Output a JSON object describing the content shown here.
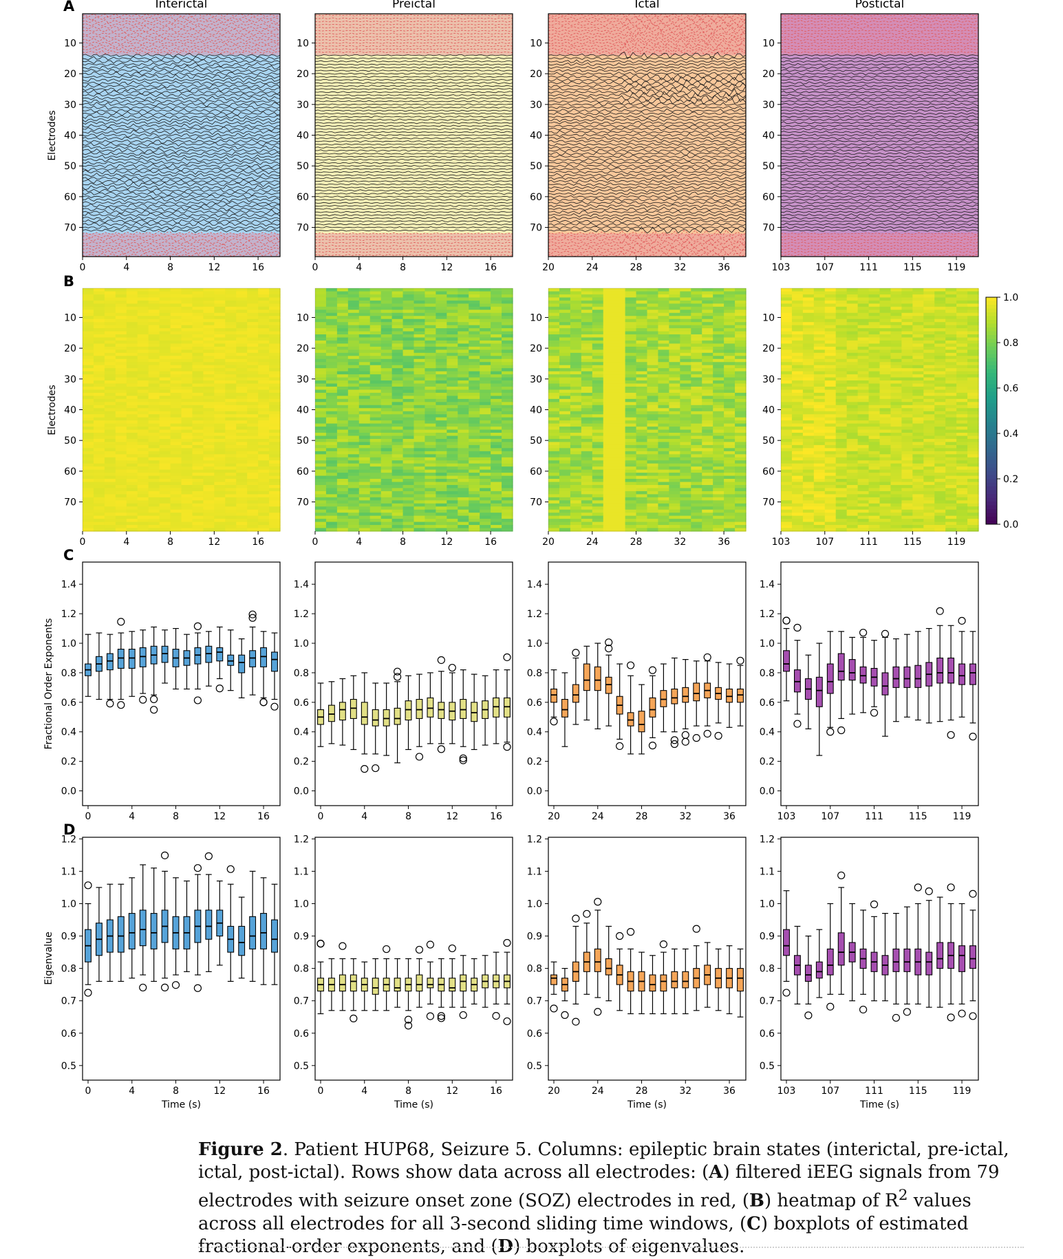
{
  "figure": {
    "panel_letters": [
      "A",
      "B",
      "C",
      "D"
    ],
    "columns": [
      {
        "title": "Interictal",
        "xticks": [
          "0",
          "4",
          "8",
          "12",
          "16"
        ],
        "color": "#56a3d9",
        "bg": "#a8d4f1"
      },
      {
        "title": "Preictal",
        "xticks": [
          "0",
          "4",
          "8",
          "12",
          "16"
        ],
        "color": "#e2e086",
        "bg": "#f3eeb6"
      },
      {
        "title": "Ictal",
        "xticks": [
          "20",
          "24",
          "28",
          "32",
          "36"
        ],
        "color": "#f5a558",
        "bg": "#f8c79a"
      },
      {
        "title": "Postictal",
        "xticks": [
          "103",
          "107",
          "111",
          "115",
          "119"
        ],
        "color": "#a64fb0",
        "bg": "#c691c8"
      }
    ],
    "soz_color": "#e05a5a"
  },
  "chart_data": [
    {
      "type": "line",
      "panel": "A",
      "description_rows": "filtered iEEG signals from 79 electrodes",
      "ylabel": "Electrodes",
      "xlabel": "",
      "yticks": [
        "10",
        "20",
        "30",
        "40",
        "50",
        "60",
        "70"
      ],
      "n_electrodes": 79,
      "soz_electrodes": [
        1,
        2,
        3,
        4,
        5,
        6,
        7,
        8,
        9,
        10,
        11,
        12,
        13,
        72,
        73,
        74,
        75,
        76,
        77,
        78,
        79
      ],
      "x_ranges": [
        [
          0,
          18
        ],
        [
          0,
          18
        ],
        [
          20,
          38
        ],
        [
          103,
          121
        ]
      ]
    },
    {
      "type": "heatmap",
      "panel": "B",
      "ylabel": "Electrodes",
      "xlabel": "",
      "yticks": [
        "10",
        "20",
        "30",
        "40",
        "50",
        "60",
        "70"
      ],
      "colorbar": {
        "ticks": [
          "0.0",
          "0.2",
          "0.4",
          "0.6",
          "0.8",
          "1.0"
        ],
        "range": [
          0,
          1
        ],
        "colormap": "viridis"
      },
      "mean_r2": [
        0.97,
        0.82,
        0.86,
        0.92
      ]
    },
    {
      "type": "box",
      "panel": "C",
      "ylabel": "Fractional Order Exponents",
      "xlabel": "",
      "yticks": [
        "0.0",
        "0.2",
        "0.4",
        "0.6",
        "0.8",
        "1.0",
        "1.2",
        "1.4"
      ],
      "ylim": [
        -0.1,
        1.55
      ],
      "series": [
        {
          "name": "Interictal",
          "x0": 0,
          "medians": [
            0.82,
            0.86,
            0.88,
            0.9,
            0.9,
            0.91,
            0.92,
            0.93,
            0.9,
            0.9,
            0.92,
            0.93,
            0.94,
            0.88,
            0.87,
            0.9,
            0.91,
            0.89
          ],
          "q1": [
            0.78,
            0.81,
            0.82,
            0.83,
            0.83,
            0.84,
            0.86,
            0.87,
            0.84,
            0.85,
            0.86,
            0.87,
            0.88,
            0.85,
            0.8,
            0.84,
            0.84,
            0.81
          ],
          "q3": [
            0.86,
            0.91,
            0.93,
            0.96,
            0.96,
            0.97,
            0.98,
            0.98,
            0.96,
            0.95,
            0.97,
            0.98,
            0.97,
            0.92,
            0.92,
            0.95,
            0.97,
            0.94
          ],
          "wlo": [
            0.64,
            0.62,
            0.62,
            0.62,
            0.64,
            0.66,
            0.65,
            0.73,
            0.69,
            0.69,
            0.69,
            0.71,
            0.76,
            0.68,
            0.63,
            0.65,
            0.63,
            0.62
          ],
          "whi": [
            1.06,
            1.07,
            1.06,
            1.07,
            1.08,
            1.09,
            1.11,
            1.09,
            1.1,
            1.06,
            1.07,
            1.08,
            1.11,
            1.09,
            1.03,
            1.11,
            1.08,
            1.07
          ]
        },
        {
          "name": "Preictal",
          "x0": 0,
          "medians": [
            0.5,
            0.52,
            0.55,
            0.56,
            0.5,
            0.48,
            0.49,
            0.49,
            0.55,
            0.55,
            0.56,
            0.55,
            0.54,
            0.55,
            0.53,
            0.55,
            0.57,
            0.57
          ],
          "q1": [
            0.45,
            0.47,
            0.48,
            0.49,
            0.45,
            0.44,
            0.44,
            0.45,
            0.48,
            0.49,
            0.5,
            0.49,
            0.48,
            0.49,
            0.47,
            0.49,
            0.5,
            0.5
          ],
          "q3": [
            0.55,
            0.58,
            0.6,
            0.62,
            0.6,
            0.55,
            0.55,
            0.56,
            0.61,
            0.62,
            0.63,
            0.6,
            0.6,
            0.62,
            0.6,
            0.61,
            0.63,
            0.63
          ],
          "wlo": [
            0.3,
            0.32,
            0.31,
            0.28,
            0.25,
            0.25,
            0.24,
            0.19,
            0.28,
            0.3,
            0.32,
            0.32,
            0.32,
            0.3,
            0.28,
            0.31,
            0.32,
            0.33
          ],
          "whi": [
            0.73,
            0.74,
            0.76,
            0.78,
            0.8,
            0.73,
            0.73,
            0.74,
            0.78,
            0.79,
            0.8,
            0.81,
            0.8,
            0.82,
            0.79,
            0.78,
            0.82,
            0.82
          ]
        },
        {
          "name": "Ictal",
          "x0": 20,
          "medians": [
            0.65,
            0.55,
            0.65,
            0.75,
            0.75,
            0.72,
            0.58,
            0.48,
            0.45,
            0.55,
            0.62,
            0.63,
            0.64,
            0.66,
            0.68,
            0.66,
            0.64,
            0.65
          ],
          "q1": [
            0.6,
            0.5,
            0.6,
            0.68,
            0.68,
            0.66,
            0.52,
            0.44,
            0.4,
            0.5,
            0.57,
            0.59,
            0.6,
            0.61,
            0.63,
            0.62,
            0.6,
            0.6
          ],
          "q3": [
            0.69,
            0.62,
            0.72,
            0.86,
            0.84,
            0.77,
            0.64,
            0.53,
            0.54,
            0.63,
            0.68,
            0.69,
            0.7,
            0.73,
            0.73,
            0.7,
            0.69,
            0.69
          ],
          "wlo": [
            0.5,
            0.3,
            0.45,
            0.48,
            0.42,
            0.44,
            0.35,
            0.25,
            0.25,
            0.36,
            0.4,
            0.4,
            0.42,
            0.44,
            0.44,
            0.46,
            0.43,
            0.44
          ],
          "whi": [
            0.82,
            0.8,
            0.9,
            0.98,
            1.0,
            0.92,
            0.86,
            0.78,
            0.72,
            0.78,
            0.86,
            0.9,
            0.89,
            0.88,
            0.88,
            0.87,
            0.86,
            0.85
          ]
        },
        {
          "name": "Postictal",
          "x0": 103,
          "medians": [
            0.86,
            0.74,
            0.69,
            0.68,
            0.74,
            0.81,
            0.8,
            0.78,
            0.77,
            0.71,
            0.76,
            0.76,
            0.76,
            0.79,
            0.8,
            0.8,
            0.78,
            0.8
          ],
          "q1": [
            0.81,
            0.67,
            0.62,
            0.57,
            0.66,
            0.75,
            0.75,
            0.73,
            0.71,
            0.65,
            0.7,
            0.7,
            0.7,
            0.71,
            0.73,
            0.73,
            0.72,
            0.72
          ],
          "q3": [
            0.95,
            0.82,
            0.76,
            0.77,
            0.86,
            0.93,
            0.89,
            0.84,
            0.83,
            0.8,
            0.84,
            0.84,
            0.85,
            0.87,
            0.9,
            0.9,
            0.86,
            0.86
          ],
          "wlo": [
            0.61,
            0.52,
            0.42,
            0.24,
            0.43,
            0.49,
            0.52,
            0.53,
            0.57,
            0.37,
            0.47,
            0.5,
            0.48,
            0.46,
            0.47,
            0.48,
            0.5,
            0.46
          ],
          "whi": [
            1.1,
            1.02,
            0.92,
            1.0,
            1.08,
            1.08,
            1.04,
            1.04,
            1.02,
            1.04,
            1.03,
            1.06,
            1.08,
            1.1,
            1.12,
            1.12,
            1.08,
            1.08
          ]
        }
      ]
    },
    {
      "type": "box",
      "panel": "D",
      "ylabel": "Eigenvalue",
      "xlabel": "Time (s)",
      "yticks": [
        "0.5",
        "0.6",
        "0.7",
        "0.8",
        "0.9",
        "1.0",
        "1.1",
        "1.2"
      ],
      "ylim": [
        0.455,
        1.205
      ],
      "series": [
        {
          "name": "Interictal",
          "x0": 0,
          "medians": [
            0.87,
            0.89,
            0.9,
            0.9,
            0.91,
            0.92,
            0.91,
            0.93,
            0.91,
            0.91,
            0.93,
            0.93,
            0.94,
            0.89,
            0.88,
            0.9,
            0.91,
            0.89
          ],
          "q1": [
            0.82,
            0.84,
            0.85,
            0.85,
            0.86,
            0.87,
            0.86,
            0.88,
            0.86,
            0.86,
            0.88,
            0.89,
            0.9,
            0.85,
            0.84,
            0.86,
            0.86,
            0.85
          ],
          "q3": [
            0.92,
            0.94,
            0.95,
            0.96,
            0.97,
            0.98,
            0.97,
            0.98,
            0.96,
            0.96,
            0.98,
            0.98,
            0.98,
            0.93,
            0.93,
            0.96,
            0.97,
            0.95
          ],
          "wlo": [
            0.75,
            0.76,
            0.76,
            0.76,
            0.77,
            0.78,
            0.76,
            0.77,
            0.78,
            0.79,
            0.78,
            0.79,
            0.81,
            0.76,
            0.77,
            0.76,
            0.75,
            0.75
          ],
          "whi": [
            1.0,
            1.05,
            1.06,
            1.06,
            1.08,
            1.12,
            1.11,
            1.1,
            1.08,
            1.07,
            1.09,
            1.09,
            1.07,
            1.06,
            1.02,
            1.1,
            1.08,
            1.06
          ]
        },
        {
          "name": "Preictal",
          "x0": 0,
          "medians": [
            0.75,
            0.75,
            0.75,
            0.76,
            0.75,
            0.74,
            0.75,
            0.74,
            0.75,
            0.75,
            0.75,
            0.75,
            0.74,
            0.76,
            0.75,
            0.76,
            0.76,
            0.76
          ],
          "q1": [
            0.73,
            0.73,
            0.73,
            0.73,
            0.73,
            0.72,
            0.73,
            0.73,
            0.73,
            0.73,
            0.74,
            0.73,
            0.73,
            0.73,
            0.73,
            0.74,
            0.74,
            0.74
          ],
          "q3": [
            0.77,
            0.77,
            0.78,
            0.78,
            0.77,
            0.77,
            0.77,
            0.77,
            0.77,
            0.78,
            0.77,
            0.77,
            0.77,
            0.78,
            0.77,
            0.78,
            0.78,
            0.78
          ],
          "wlo": [
            0.66,
            0.67,
            0.67,
            0.67,
            0.67,
            0.67,
            0.67,
            0.68,
            0.67,
            0.68,
            0.69,
            0.68,
            0.68,
            0.68,
            0.69,
            0.68,
            0.69,
            0.69
          ],
          "whi": [
            0.82,
            0.83,
            0.83,
            0.83,
            0.82,
            0.83,
            0.83,
            0.83,
            0.83,
            0.83,
            0.82,
            0.83,
            0.83,
            0.84,
            0.83,
            0.84,
            0.85,
            0.85
          ]
        },
        {
          "name": "Ictal",
          "x0": 20,
          "medians": [
            0.77,
            0.75,
            0.79,
            0.82,
            0.82,
            0.8,
            0.78,
            0.76,
            0.76,
            0.75,
            0.76,
            0.76,
            0.76,
            0.77,
            0.78,
            0.77,
            0.77,
            0.77
          ],
          "q1": [
            0.75,
            0.73,
            0.76,
            0.79,
            0.79,
            0.78,
            0.75,
            0.73,
            0.73,
            0.73,
            0.73,
            0.74,
            0.74,
            0.74,
            0.75,
            0.74,
            0.74,
            0.73
          ],
          "q3": [
            0.78,
            0.77,
            0.82,
            0.85,
            0.86,
            0.83,
            0.81,
            0.79,
            0.79,
            0.78,
            0.78,
            0.79,
            0.79,
            0.8,
            0.81,
            0.8,
            0.8,
            0.8
          ],
          "wlo": [
            0.72,
            0.7,
            0.69,
            0.72,
            0.71,
            0.7,
            0.67,
            0.66,
            0.66,
            0.66,
            0.66,
            0.66,
            0.66,
            0.67,
            0.68,
            0.67,
            0.66,
            0.65
          ],
          "whi": [
            0.82,
            0.8,
            0.93,
            0.94,
            0.98,
            0.93,
            0.86,
            0.86,
            0.85,
            0.84,
            0.85,
            0.86,
            0.86,
            0.87,
            0.88,
            0.86,
            0.87,
            0.86
          ]
        },
        {
          "name": "Postictal",
          "x0": 103,
          "medians": [
            0.87,
            0.81,
            0.78,
            0.79,
            0.81,
            0.85,
            0.85,
            0.83,
            0.82,
            0.81,
            0.82,
            0.82,
            0.82,
            0.82,
            0.83,
            0.84,
            0.84,
            0.83
          ],
          "q1": [
            0.84,
            0.78,
            0.76,
            0.77,
            0.78,
            0.81,
            0.82,
            0.8,
            0.79,
            0.78,
            0.79,
            0.79,
            0.78,
            0.78,
            0.8,
            0.8,
            0.79,
            0.8
          ],
          "q3": [
            0.92,
            0.84,
            0.81,
            0.82,
            0.86,
            0.91,
            0.88,
            0.86,
            0.85,
            0.84,
            0.86,
            0.86,
            0.86,
            0.85,
            0.88,
            0.88,
            0.87,
            0.87
          ],
          "wlo": [
            0.76,
            0.69,
            0.69,
            0.71,
            0.72,
            0.72,
            0.7,
            0.72,
            0.7,
            0.7,
            0.69,
            0.69,
            0.69,
            0.68,
            0.68,
            0.69,
            0.69,
            0.7
          ],
          "whi": [
            1.04,
            0.93,
            0.9,
            0.92,
            1.0,
            1.05,
            1.0,
            0.98,
            0.96,
            0.97,
            0.97,
            0.99,
            1.0,
            1.01,
            1.02,
            1.0,
            1.0,
            0.98
          ]
        }
      ]
    }
  ],
  "caption": {
    "label": "Figure 2",
    "text_1": ".  Patient HUP68, Seizure 5. Columns: epileptic brain states (interictal, pre-ictal, ictal, post-ictal). Rows show data across all electrodes: (",
    "A": "A",
    "text_2": ") filtered iEEG signals from 79 electrodes with seizure onset zone (SOZ) electrodes in red, (",
    "B": "B",
    "text_3": ") heatmap of R",
    "sup": "2",
    "text_4": " values across all electrodes for all 3-second sliding time windows, (",
    "C": "C",
    "text_5": ") boxplots of estimated fractional-order exponents, and (",
    "D": "D",
    "text_6": ") boxplots of eigenvalues."
  }
}
